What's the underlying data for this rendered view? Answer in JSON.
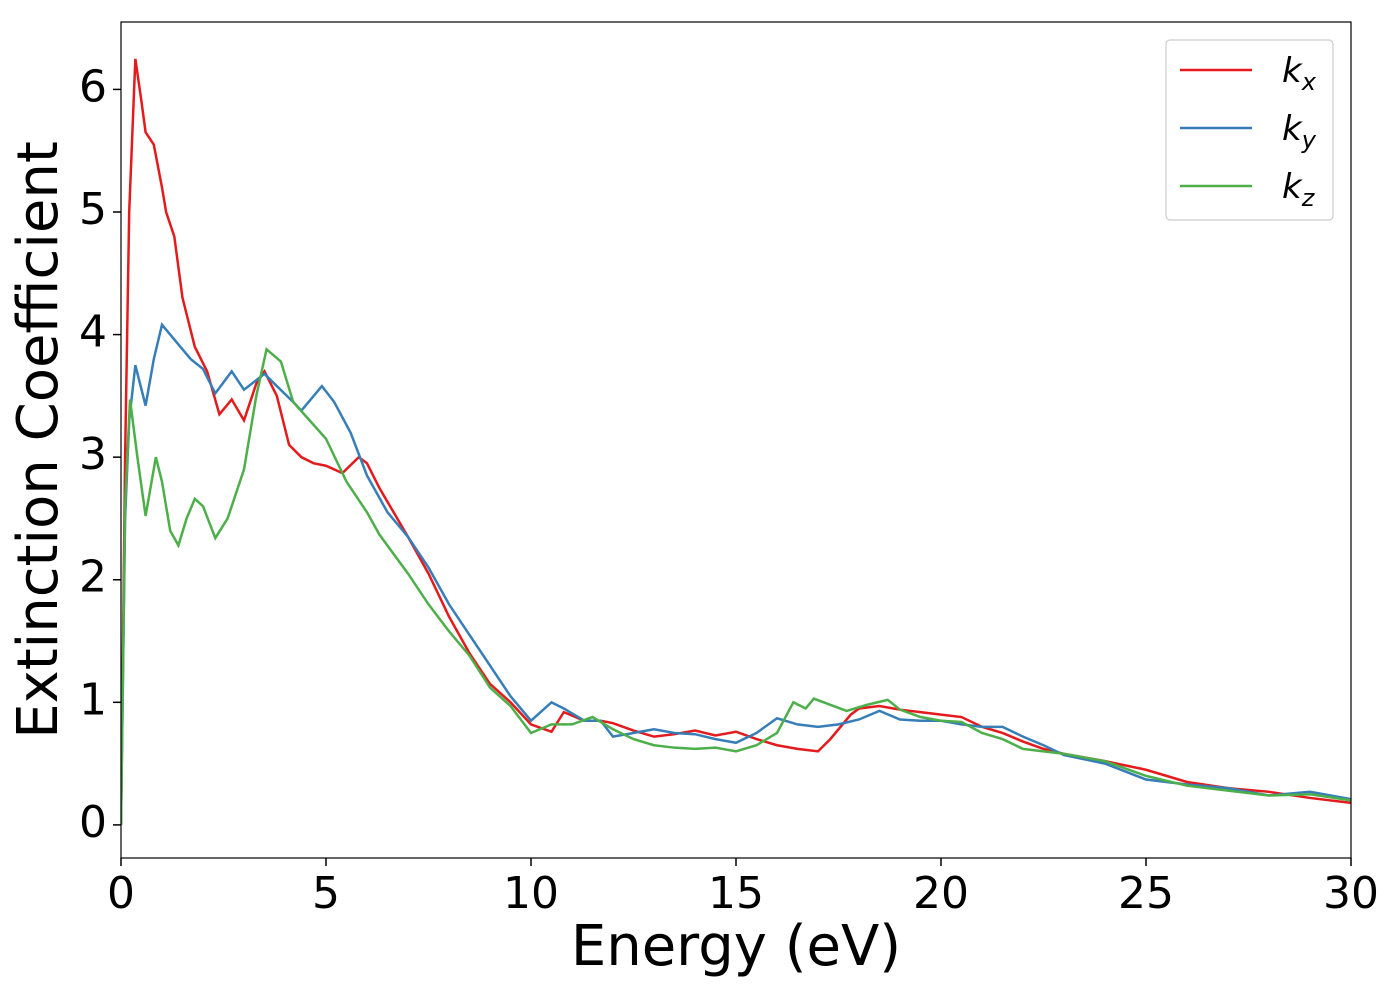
{
  "chart_data": {
    "type": "line",
    "x_label": "Energy (eV)",
    "y_label": "Extinction Coefficient",
    "xlim": [
      0,
      30
    ],
    "ylim": [
      -0.27,
      6.55
    ],
    "xticks": [
      0,
      5,
      10,
      15,
      20,
      25,
      30
    ],
    "yticks": [
      0,
      1,
      2,
      3,
      4,
      5,
      6
    ],
    "legend": "upper right",
    "grid": false,
    "series": [
      {
        "name": "kx",
        "color": "#e41a1c",
        "x": [
          0,
          0.1,
          0.2,
          0.35,
          0.5,
          0.6,
          0.8,
          1.0,
          1.1,
          1.3,
          1.5,
          1.8,
          2.1,
          2.4,
          2.7,
          3.0,
          3.3,
          3.5,
          3.8,
          4.1,
          4.4,
          4.7,
          5.0,
          5.4,
          5.8,
          6.0,
          6.3,
          7.0,
          7.5,
          8.0,
          8.5,
          9.0,
          9.5,
          10.0,
          10.5,
          10.8,
          11.3,
          11.7,
          12.0,
          12.5,
          13.0,
          13.5,
          14.0,
          14.5,
          15.0,
          15.5,
          16.0,
          16.5,
          17.0,
          17.3,
          17.8,
          18.0,
          18.5,
          19.0,
          19.5,
          20.0,
          20.5,
          21.0,
          21.5,
          22.0,
          22.5,
          23.0,
          24.0,
          25.0,
          26.0,
          27.0,
          28.0,
          29.0,
          30.0
        ],
        "values": [
          0,
          3.0,
          5.0,
          6.25,
          5.9,
          5.65,
          5.55,
          5.2,
          5.0,
          4.8,
          4.3,
          3.9,
          3.7,
          3.35,
          3.47,
          3.3,
          3.6,
          3.7,
          3.5,
          3.1,
          3.0,
          2.95,
          2.93,
          2.87,
          3.0,
          2.95,
          2.75,
          2.35,
          2.05,
          1.7,
          1.4,
          1.15,
          1.0,
          0.82,
          0.76,
          0.92,
          0.85,
          0.85,
          0.83,
          0.77,
          0.72,
          0.74,
          0.77,
          0.73,
          0.76,
          0.7,
          0.65,
          0.62,
          0.6,
          0.7,
          0.9,
          0.95,
          0.97,
          0.94,
          0.92,
          0.9,
          0.88,
          0.8,
          0.75,
          0.68,
          0.62,
          0.58,
          0.52,
          0.45,
          0.35,
          0.3,
          0.27,
          0.22,
          0.18
        ]
      },
      {
        "name": "ky",
        "color": "#377eb8",
        "x": [
          0,
          0.1,
          0.2,
          0.35,
          0.6,
          0.8,
          1.0,
          1.2,
          1.4,
          1.7,
          2.0,
          2.3,
          2.7,
          3.0,
          3.5,
          3.8,
          4.2,
          4.4,
          4.9,
          5.2,
          5.6,
          6.0,
          6.5,
          7.0,
          7.5,
          8.0,
          8.5,
          9.0,
          9.5,
          10.0,
          10.5,
          10.8,
          11.3,
          11.7,
          12.0,
          12.5,
          13.0,
          13.5,
          14.0,
          14.5,
          15.0,
          15.5,
          16.0,
          16.5,
          17.0,
          17.5,
          18.0,
          18.5,
          19.0,
          19.5,
          20.0,
          20.5,
          21.0,
          21.5,
          22.0,
          22.5,
          23.0,
          24.0,
          25.0,
          26.0,
          27.0,
          28.0,
          29.0,
          30.0
        ],
        "values": [
          0,
          2.5,
          3.3,
          3.75,
          3.42,
          3.8,
          4.08,
          4.0,
          3.92,
          3.8,
          3.72,
          3.52,
          3.7,
          3.55,
          3.68,
          3.58,
          3.45,
          3.38,
          3.58,
          3.45,
          3.2,
          2.85,
          2.55,
          2.35,
          2.1,
          1.8,
          1.55,
          1.3,
          1.05,
          0.85,
          1.0,
          0.95,
          0.85,
          0.85,
          0.72,
          0.75,
          0.78,
          0.75,
          0.74,
          0.7,
          0.67,
          0.75,
          0.87,
          0.82,
          0.8,
          0.82,
          0.86,
          0.93,
          0.86,
          0.85,
          0.85,
          0.82,
          0.8,
          0.8,
          0.72,
          0.65,
          0.57,
          0.5,
          0.37,
          0.33,
          0.3,
          0.24,
          0.27,
          0.21
        ]
      },
      {
        "name": "kz",
        "color": "#4daf4a",
        "x": [
          0,
          0.1,
          0.22,
          0.4,
          0.6,
          0.85,
          1.0,
          1.2,
          1.4,
          1.6,
          1.8,
          2.0,
          2.3,
          2.6,
          3.0,
          3.3,
          3.55,
          3.9,
          4.2,
          4.6,
          5.0,
          5.5,
          6.0,
          6.3,
          7.0,
          7.5,
          8.0,
          8.5,
          9.0,
          9.5,
          10.0,
          10.5,
          11.0,
          11.5,
          12.0,
          12.5,
          13.0,
          13.5,
          14.0,
          14.5,
          15.0,
          15.5,
          16.0,
          16.4,
          16.7,
          16.9,
          17.3,
          17.7,
          18.2,
          18.7,
          19.0,
          19.5,
          20.0,
          20.5,
          21.0,
          21.5,
          22.0,
          22.5,
          23.0,
          24.0,
          25.0,
          26.0,
          27.0,
          28.0,
          29.0,
          30.0
        ],
        "values": [
          0,
          2.6,
          3.47,
          3.0,
          2.52,
          3.0,
          2.8,
          2.4,
          2.28,
          2.5,
          2.66,
          2.6,
          2.34,
          2.5,
          2.9,
          3.5,
          3.88,
          3.78,
          3.45,
          3.3,
          3.15,
          2.8,
          2.55,
          2.37,
          2.05,
          1.8,
          1.58,
          1.38,
          1.12,
          0.97,
          0.75,
          0.82,
          0.82,
          0.88,
          0.78,
          0.7,
          0.65,
          0.63,
          0.62,
          0.63,
          0.6,
          0.65,
          0.75,
          1.0,
          0.95,
          1.03,
          0.98,
          0.93,
          0.98,
          1.02,
          0.94,
          0.88,
          0.85,
          0.84,
          0.75,
          0.7,
          0.62,
          0.6,
          0.58,
          0.52,
          0.4,
          0.32,
          0.28,
          0.24,
          0.25,
          0.2
        ]
      }
    ]
  }
}
